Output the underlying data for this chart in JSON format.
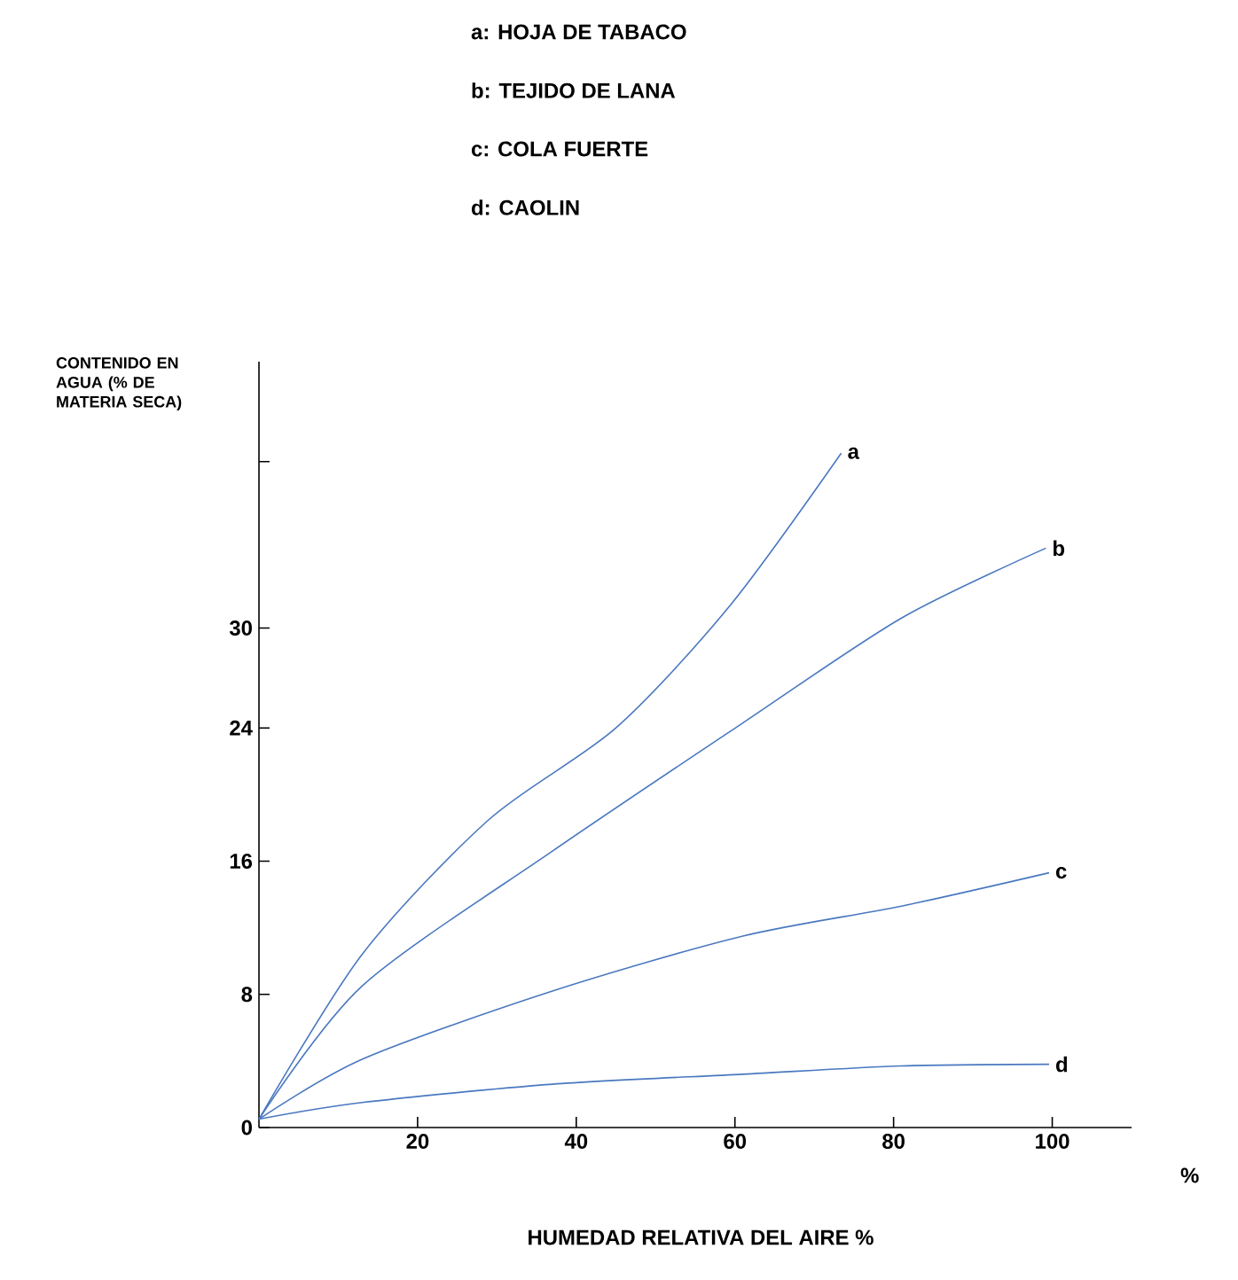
{
  "chart_data": {
    "type": "line",
    "xlabel": "HUMEDAD RELATIVA DEL AIRE %",
    "ylabel": "CONTENIDO EN AGUA (% DE MATERIA SECA)",
    "annotations": [
      "a: HOJA DE TABACO",
      "b: TEJIDO DE LANA",
      "c: COLA FUERTE",
      "d: CAOLIN",
      "%"
    ],
    "xlim": [
      0,
      110
    ],
    "ylim": [
      0,
      46
    ],
    "xticks": [
      20,
      40,
      60,
      80,
      100
    ],
    "yticks": [
      0,
      8,
      16,
      24,
      30,
      {
        "value": 40,
        "label": null
      }
    ],
    "grid": false,
    "marker": "none",
    "line_style": "solid",
    "x": [
      0,
      13,
      29,
      45,
      59.3,
      73.4
    ],
    "series": [
      {
        "name": "a",
        "color": "#4a78c0",
        "values": [
          0.5,
          10.4,
          18.5,
          24,
          31.3,
          40.5
        ]
      },
      {
        "name": "b",
        "color": "#4a78c0",
        "x": [
          0,
          13,
          37,
          61,
          81,
          99.2
        ],
        "values": [
          0.5,
          8.5,
          16.6,
          24.3,
          30.6,
          34.8
        ]
      },
      {
        "name": "c",
        "color": "#4a78c0",
        "x": [
          0,
          13,
          37,
          61,
          81,
          99.6
        ],
        "values": [
          0.5,
          4.1,
          8.2,
          11.5,
          13.3,
          15.3
        ]
      },
      {
        "name": "d",
        "color": "#4a78c0",
        "x": [
          0,
          13,
          37,
          61,
          81,
          99.6
        ],
        "values": [
          0.5,
          1.5,
          2.6,
          3.2,
          3.7,
          3.8
        ]
      }
    ]
  }
}
